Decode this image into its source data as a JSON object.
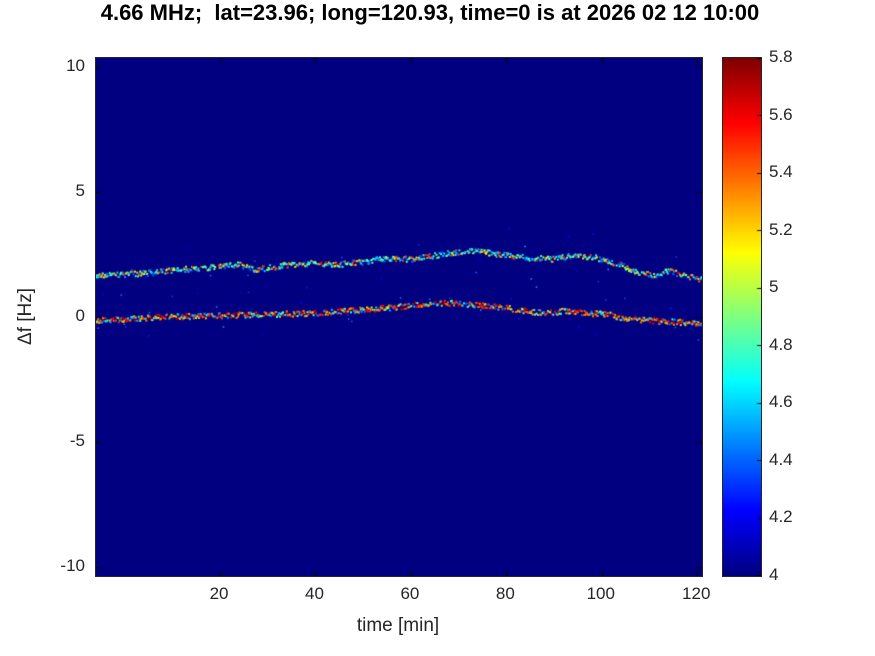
{
  "figure": {
    "title": "4.66 MHz;  lat=23.96; long=120.93, time=0 is at 2026 02 12 10:00"
  },
  "chart_data": {
    "type": "heatmap",
    "title": "4.66 MHz;  lat=23.96; long=120.93, time=0 is at 2026 02 12 10:00",
    "xlabel": "time [min]",
    "ylabel": "Δf [Hz]",
    "xlim": [
      -6,
      121
    ],
    "ylim": [
      -10.36,
      10.36
    ],
    "x_ticks": [
      20,
      40,
      60,
      80,
      100,
      120
    ],
    "x_tick_labels": [
      "20",
      "40",
      "60",
      "80",
      "100",
      "120"
    ],
    "y_ticks": [
      -10,
      -5,
      0,
      5,
      10
    ],
    "y_tick_labels": [
      "-10",
      "-5",
      "0",
      "5",
      "10"
    ],
    "grid": false,
    "background_value": 4,
    "background_color": "#00007f",
    "colorbar": {
      "position": "right",
      "colormap": "jet",
      "limits": [
        4,
        5.8
      ],
      "tick_values": [
        4,
        4.2,
        4.4,
        4.6,
        4.8,
        5,
        5.2,
        5.4,
        5.6,
        5.8
      ],
      "tick_labels": [
        "4",
        "4.2",
        "4.4",
        "4.6",
        "4.8",
        "5",
        "5.2",
        "5.4",
        "5.6",
        "5.8"
      ]
    },
    "series": [
      {
        "name": "upper-doppler-trace",
        "description": "speckled trace near +2 Hz, mostly cyan/green/yellow",
        "x": [
          -6,
          0,
          5,
          10,
          15,
          20,
          24,
          27,
          30,
          35,
          40,
          45,
          50,
          55,
          60,
          65,
          70,
          73,
          77,
          81,
          85,
          90,
          94,
          98,
          102,
          105,
          108,
          111,
          114,
          117,
          121
        ],
        "y": [
          1.65,
          1.7,
          1.75,
          1.85,
          1.95,
          2.0,
          2.1,
          1.9,
          1.95,
          2.1,
          2.15,
          2.1,
          2.2,
          2.35,
          2.3,
          2.45,
          2.6,
          2.65,
          2.55,
          2.45,
          2.35,
          2.3,
          2.45,
          2.4,
          2.2,
          2.0,
          1.75,
          1.65,
          1.85,
          1.65,
          1.5
        ],
        "value_range_primary": [
          4.35,
          5.0
        ],
        "value_range_secondary": [
          5.05,
          5.6
        ],
        "secondary_fraction": 0.3
      },
      {
        "name": "lower-doppler-trace",
        "description": "speckled trace near 0 Hz, mostly orange/red",
        "x": [
          -6,
          0,
          10,
          20,
          30,
          40,
          48,
          55,
          60,
          65,
          68,
          72,
          76,
          80,
          85,
          89,
          93,
          97,
          101,
          105,
          110,
          115,
          121
        ],
        "y": [
          -0.15,
          -0.1,
          0.0,
          0.05,
          0.1,
          0.15,
          0.25,
          0.35,
          0.45,
          0.5,
          0.55,
          0.5,
          0.45,
          0.35,
          0.2,
          0.15,
          0.25,
          0.15,
          0.1,
          -0.05,
          -0.15,
          -0.2,
          -0.25
        ],
        "value_range_primary": [
          5.2,
          5.7
        ],
        "value_range_secondary": [
          4.4,
          5.0
        ],
        "secondary_fraction": 0.3
      }
    ]
  }
}
